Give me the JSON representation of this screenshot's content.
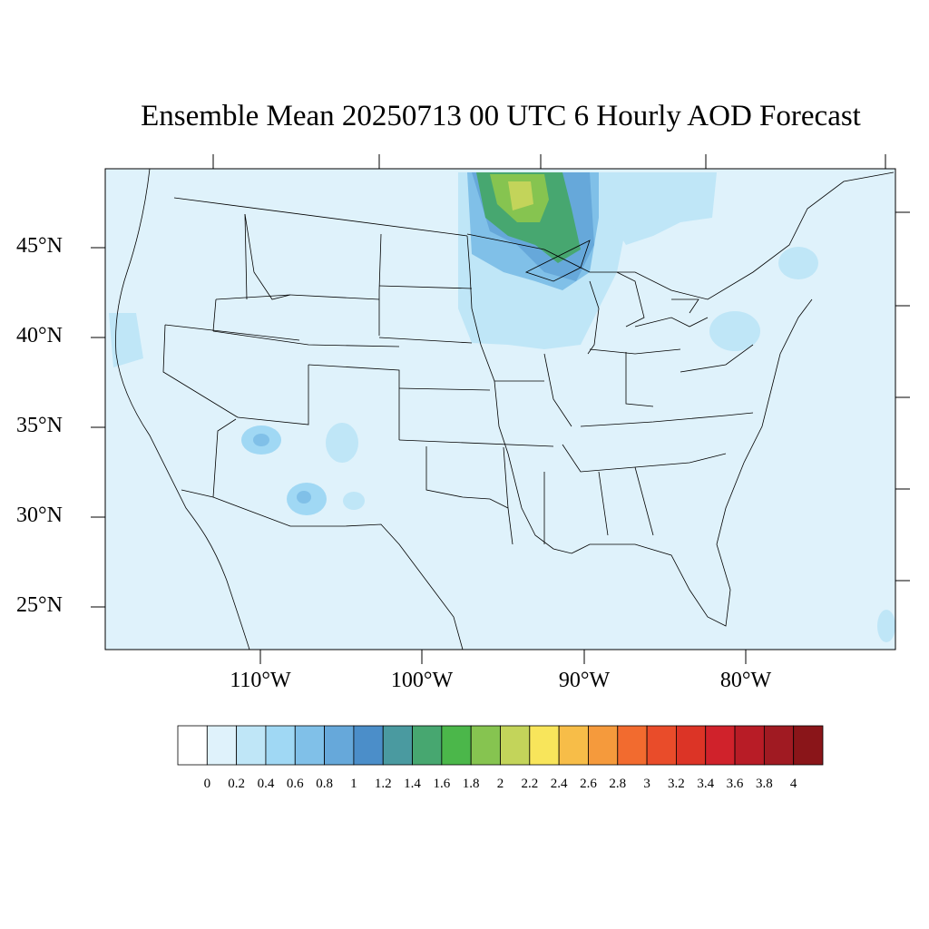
{
  "title": "Ensemble Mean 20250713 00 UTC 6 Hourly AOD Forecast",
  "lat_labels": [
    "45°N",
    "40°N",
    "35°N",
    "30°N",
    "25°N"
  ],
  "lon_labels": [
    "110°W",
    "100°W",
    "90°W",
    "80°W"
  ],
  "colorbar": {
    "labels": [
      "0",
      "0.2",
      "0.4",
      "0.6",
      "0.8",
      "1",
      "1.2",
      "1.4",
      "1.6",
      "1.8",
      "2",
      "2.2",
      "2.4",
      "2.6",
      "2.8",
      "3",
      "3.2",
      "3.4",
      "3.6",
      "3.8",
      "4"
    ],
    "colors": [
      "#ffffff",
      "#dff2fb",
      "#bfe6f7",
      "#a0d8f4",
      "#80c0e8",
      "#66a8da",
      "#4b8ec9",
      "#4a9aa0",
      "#47a770",
      "#4bb74a",
      "#86c450",
      "#c3d45a",
      "#f8e55b",
      "#f7bd48",
      "#f59a3c",
      "#f26b2f",
      "#e94c2a",
      "#dc3426",
      "#d0222b",
      "#b81c26",
      "#a01a22",
      "#8a1519"
    ]
  },
  "map_colors": {
    "background": "#dff2fb",
    "plume_low": "#bfe6f7",
    "plume_mid": "#80c0e8",
    "plume_high": "#4b8ec9",
    "plume_green": "#47a770",
    "plume_lightgreen": "#86c450",
    "plume_yellow": "#c3d45a"
  }
}
